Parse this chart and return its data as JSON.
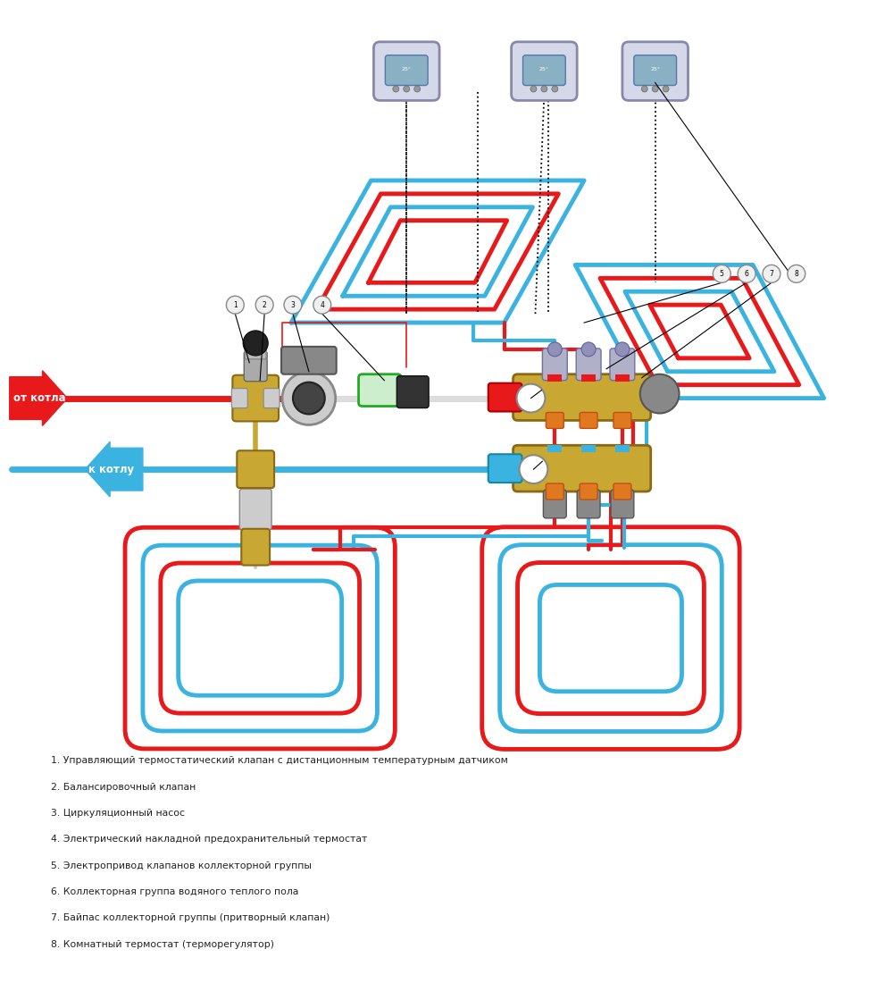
{
  "bg_color": "#ffffff",
  "red_color": "#e8191a",
  "blue_color": "#3bb3e0",
  "gold_color": "#c8a832",
  "green_color": "#22aa22",
  "dark_color": "#222222",
  "gray_color": "#aaaaaa",
  "label_color": "#222222",
  "arrow_red_text": "от котла",
  "arrow_blue_text": "к котлу",
  "legend": [
    "1. Управляющий термостатический клапан с дистанционным температурным датчиком",
    "2. Балансировочный клапан",
    "3. Циркуляционный насос",
    "4. Электрический накладной предохранительный термостат",
    "5. Электропривод клапанов коллекторной группы",
    "6. Коллекторная группа водяного теплого пола",
    "7. Байпас коллекторной группы (притворный клапан)",
    "8. Комнатный термостат (терморегулятор)"
  ],
  "figsize": [
    10,
    11
  ],
  "dpi": 100
}
